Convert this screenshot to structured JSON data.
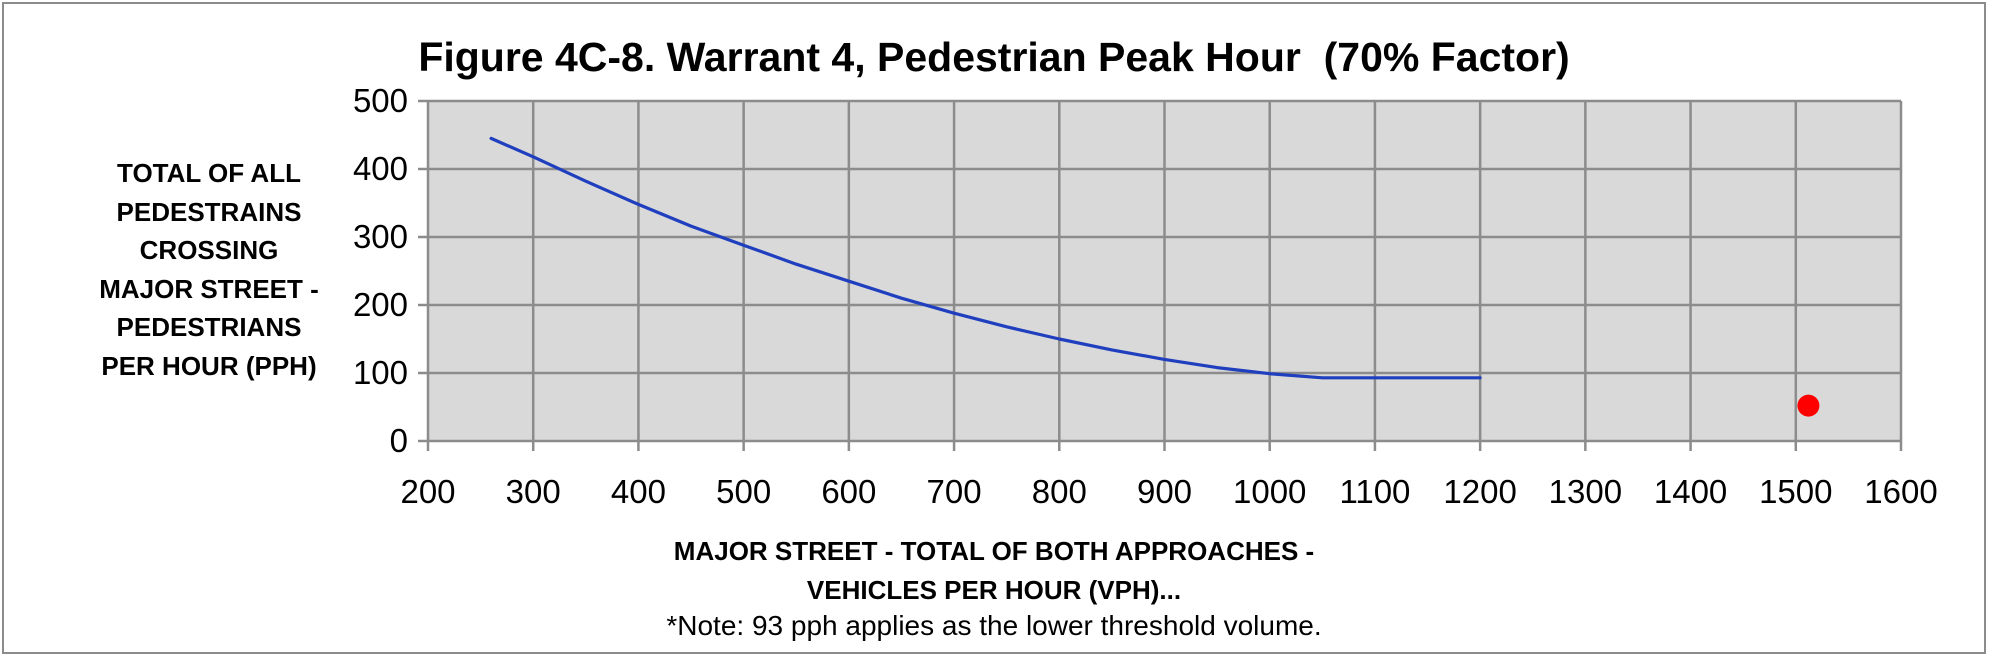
{
  "chart_data": {
    "type": "line",
    "title": "Figure 4C-8. Warrant 4, Pedestrian Peak Hour  (70% Factor)",
    "xlabel_lines": [
      "MAJOR STREET - TOTAL OF BOTH APPROACHES -",
      "VEHICLES PER HOUR (VPH)..."
    ],
    "ylabel_lines": [
      "TOTAL OF ALL",
      "PEDESTRAINS",
      "CROSSING",
      "MAJOR STREET -",
      "PEDESTRIANS",
      "PER HOUR (PPH)"
    ],
    "note": "*Note: 93 pph applies as the lower threshold volume.",
    "xlim": [
      200,
      1600
    ],
    "ylim": [
      0,
      500
    ],
    "x_ticks": [
      200,
      300,
      400,
      500,
      600,
      700,
      800,
      900,
      1000,
      1100,
      1200,
      1300,
      1400,
      1500,
      1600
    ],
    "y_ticks": [
      0,
      100,
      200,
      300,
      400,
      500
    ],
    "grid": true,
    "colors": {
      "plot_background": "#d9d9d9",
      "grid": "#8c8c8c",
      "curve": "#1f3fbf",
      "point": "#ff0000"
    },
    "series": [
      {
        "type": "line",
        "x": [
          260,
          300,
          350,
          400,
          450,
          500,
          550,
          600,
          650,
          700,
          750,
          800,
          850,
          900,
          950,
          1000,
          1050,
          1100,
          1150,
          1200
        ],
        "y": [
          445,
          418,
          382,
          348,
          316,
          288,
          260,
          235,
          210,
          188,
          168,
          150,
          134,
          120,
          108,
          99,
          93,
          93,
          93,
          93
        ]
      },
      {
        "type": "scatter",
        "x": [
          1512
        ],
        "y": [
          52
        ]
      }
    ]
  }
}
